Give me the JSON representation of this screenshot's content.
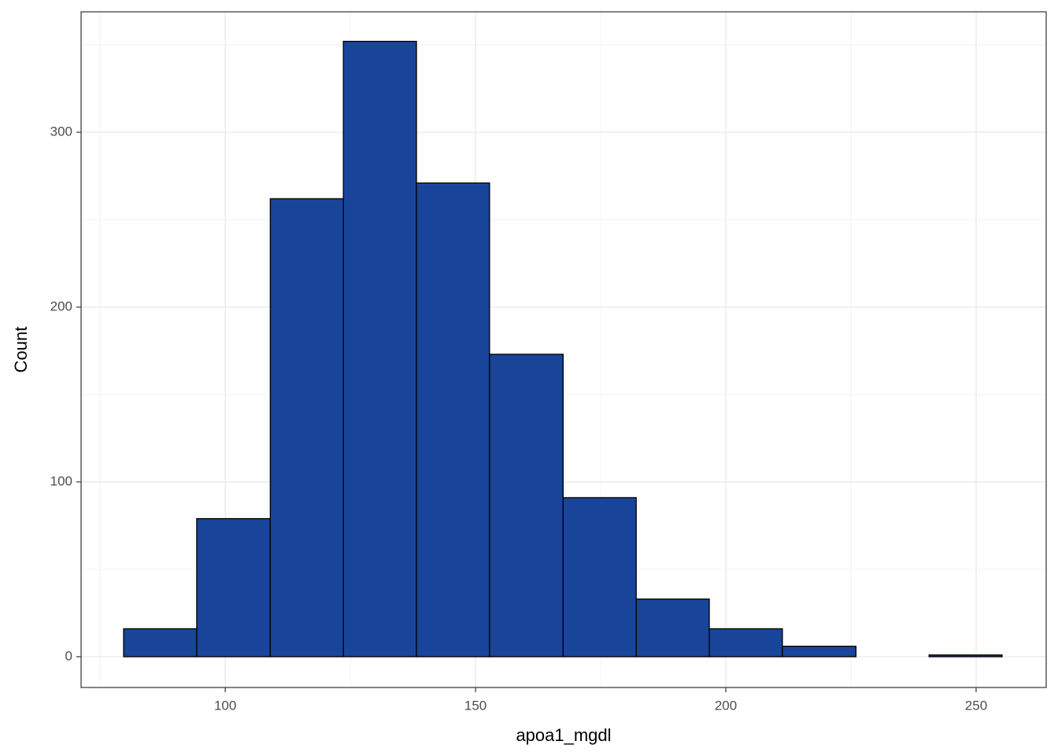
{
  "chart_data": {
    "type": "histogram",
    "x_label": "apoa1_mgdl",
    "y_label": "Count",
    "bins": [
      79.7,
      94.3,
      109.0,
      123.6,
      138.2,
      152.8,
      167.5,
      182.1,
      196.7,
      211.3,
      226.0,
      240.6,
      255.2
    ],
    "counts": [
      16,
      79,
      262,
      352,
      271,
      173,
      91,
      33,
      16,
      6,
      0,
      1
    ],
    "color": "#18449a",
    "xlim": [
      71.2,
      264.0
    ],
    "xticks": [
      100,
      150,
      200,
      250
    ],
    "xminorticks": [
      75,
      125,
      175,
      225
    ],
    "ylim": [
      -17.6,
      368.9
    ],
    "yticks": [
      0,
      100,
      200,
      300
    ],
    "yminorticks": [
      50,
      150,
      250,
      350
    ],
    "grid": true
  }
}
